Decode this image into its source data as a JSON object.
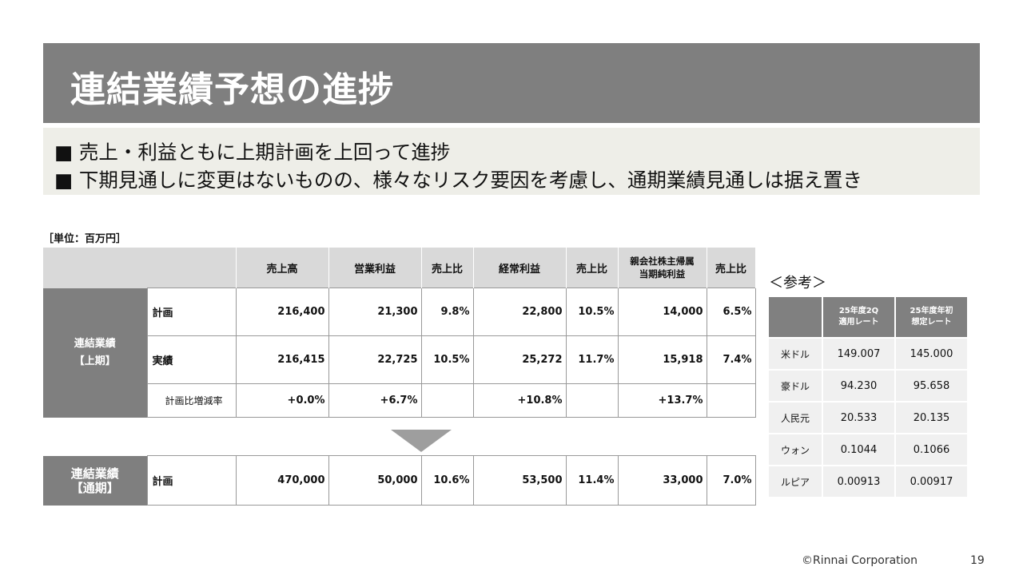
{
  "title": "連結業績予想の進捗",
  "bullets": [
    "■ 売上・利益ともに上期計画を上回って進捗",
    "■ 下期見通しに変更はないものの、様々なリスク要因を考慮し、通期業績見通しは据え置き"
  ],
  "unit": "［単位：百万円］",
  "table": {
    "headers": [
      "売上高",
      "営業利益",
      "売上比",
      "経常利益",
      "売上比",
      "親会社株主帰属\n当期純利益",
      "売上比"
    ],
    "h1_group": "連結業績\n【上期】",
    "h1_rows": [
      {
        "label": "計画",
        "values": [
          "216,400",
          "21,300",
          "9.8%",
          "22,800",
          "10.5%",
          "14,000",
          "6.5%"
        ]
      },
      {
        "label": "実績",
        "values": [
          "216,415",
          "22,725",
          "10.5%",
          "25,272",
          "11.7%",
          "15,918",
          "7.4%"
        ]
      },
      {
        "label": "計画比増減率",
        "values": [
          "+0.0%",
          "+6.7%",
          "",
          "+10.8%",
          "",
          "+13.7%",
          ""
        ]
      }
    ],
    "fy_group": "連結業績\n【通期】",
    "fy_row": {
      "label": "計画",
      "values": [
        "470,000",
        "50,000",
        "10.6%",
        "53,500",
        "11.4%",
        "33,000",
        "7.0%"
      ]
    }
  },
  "reference": {
    "title": "＜参考＞",
    "headers": [
      "25年度2Q\n適用レート",
      "25年度年初\n想定レート"
    ],
    "rows": [
      {
        "label": "米ドル",
        "values": [
          "149.007",
          "145.000"
        ]
      },
      {
        "label": "豪ドル",
        "values": [
          "94.230",
          "95.658"
        ]
      },
      {
        "label": "人民元",
        "values": [
          "20.533",
          "20.135"
        ]
      },
      {
        "label": "ウォン",
        "values": [
          "0.1044",
          "0.1066"
        ]
      },
      {
        "label": "ルピア",
        "values": [
          "0.00913",
          "0.00917"
        ]
      }
    ]
  },
  "footer": {
    "copyright": "©Rinnai Corporation",
    "page": "19"
  }
}
